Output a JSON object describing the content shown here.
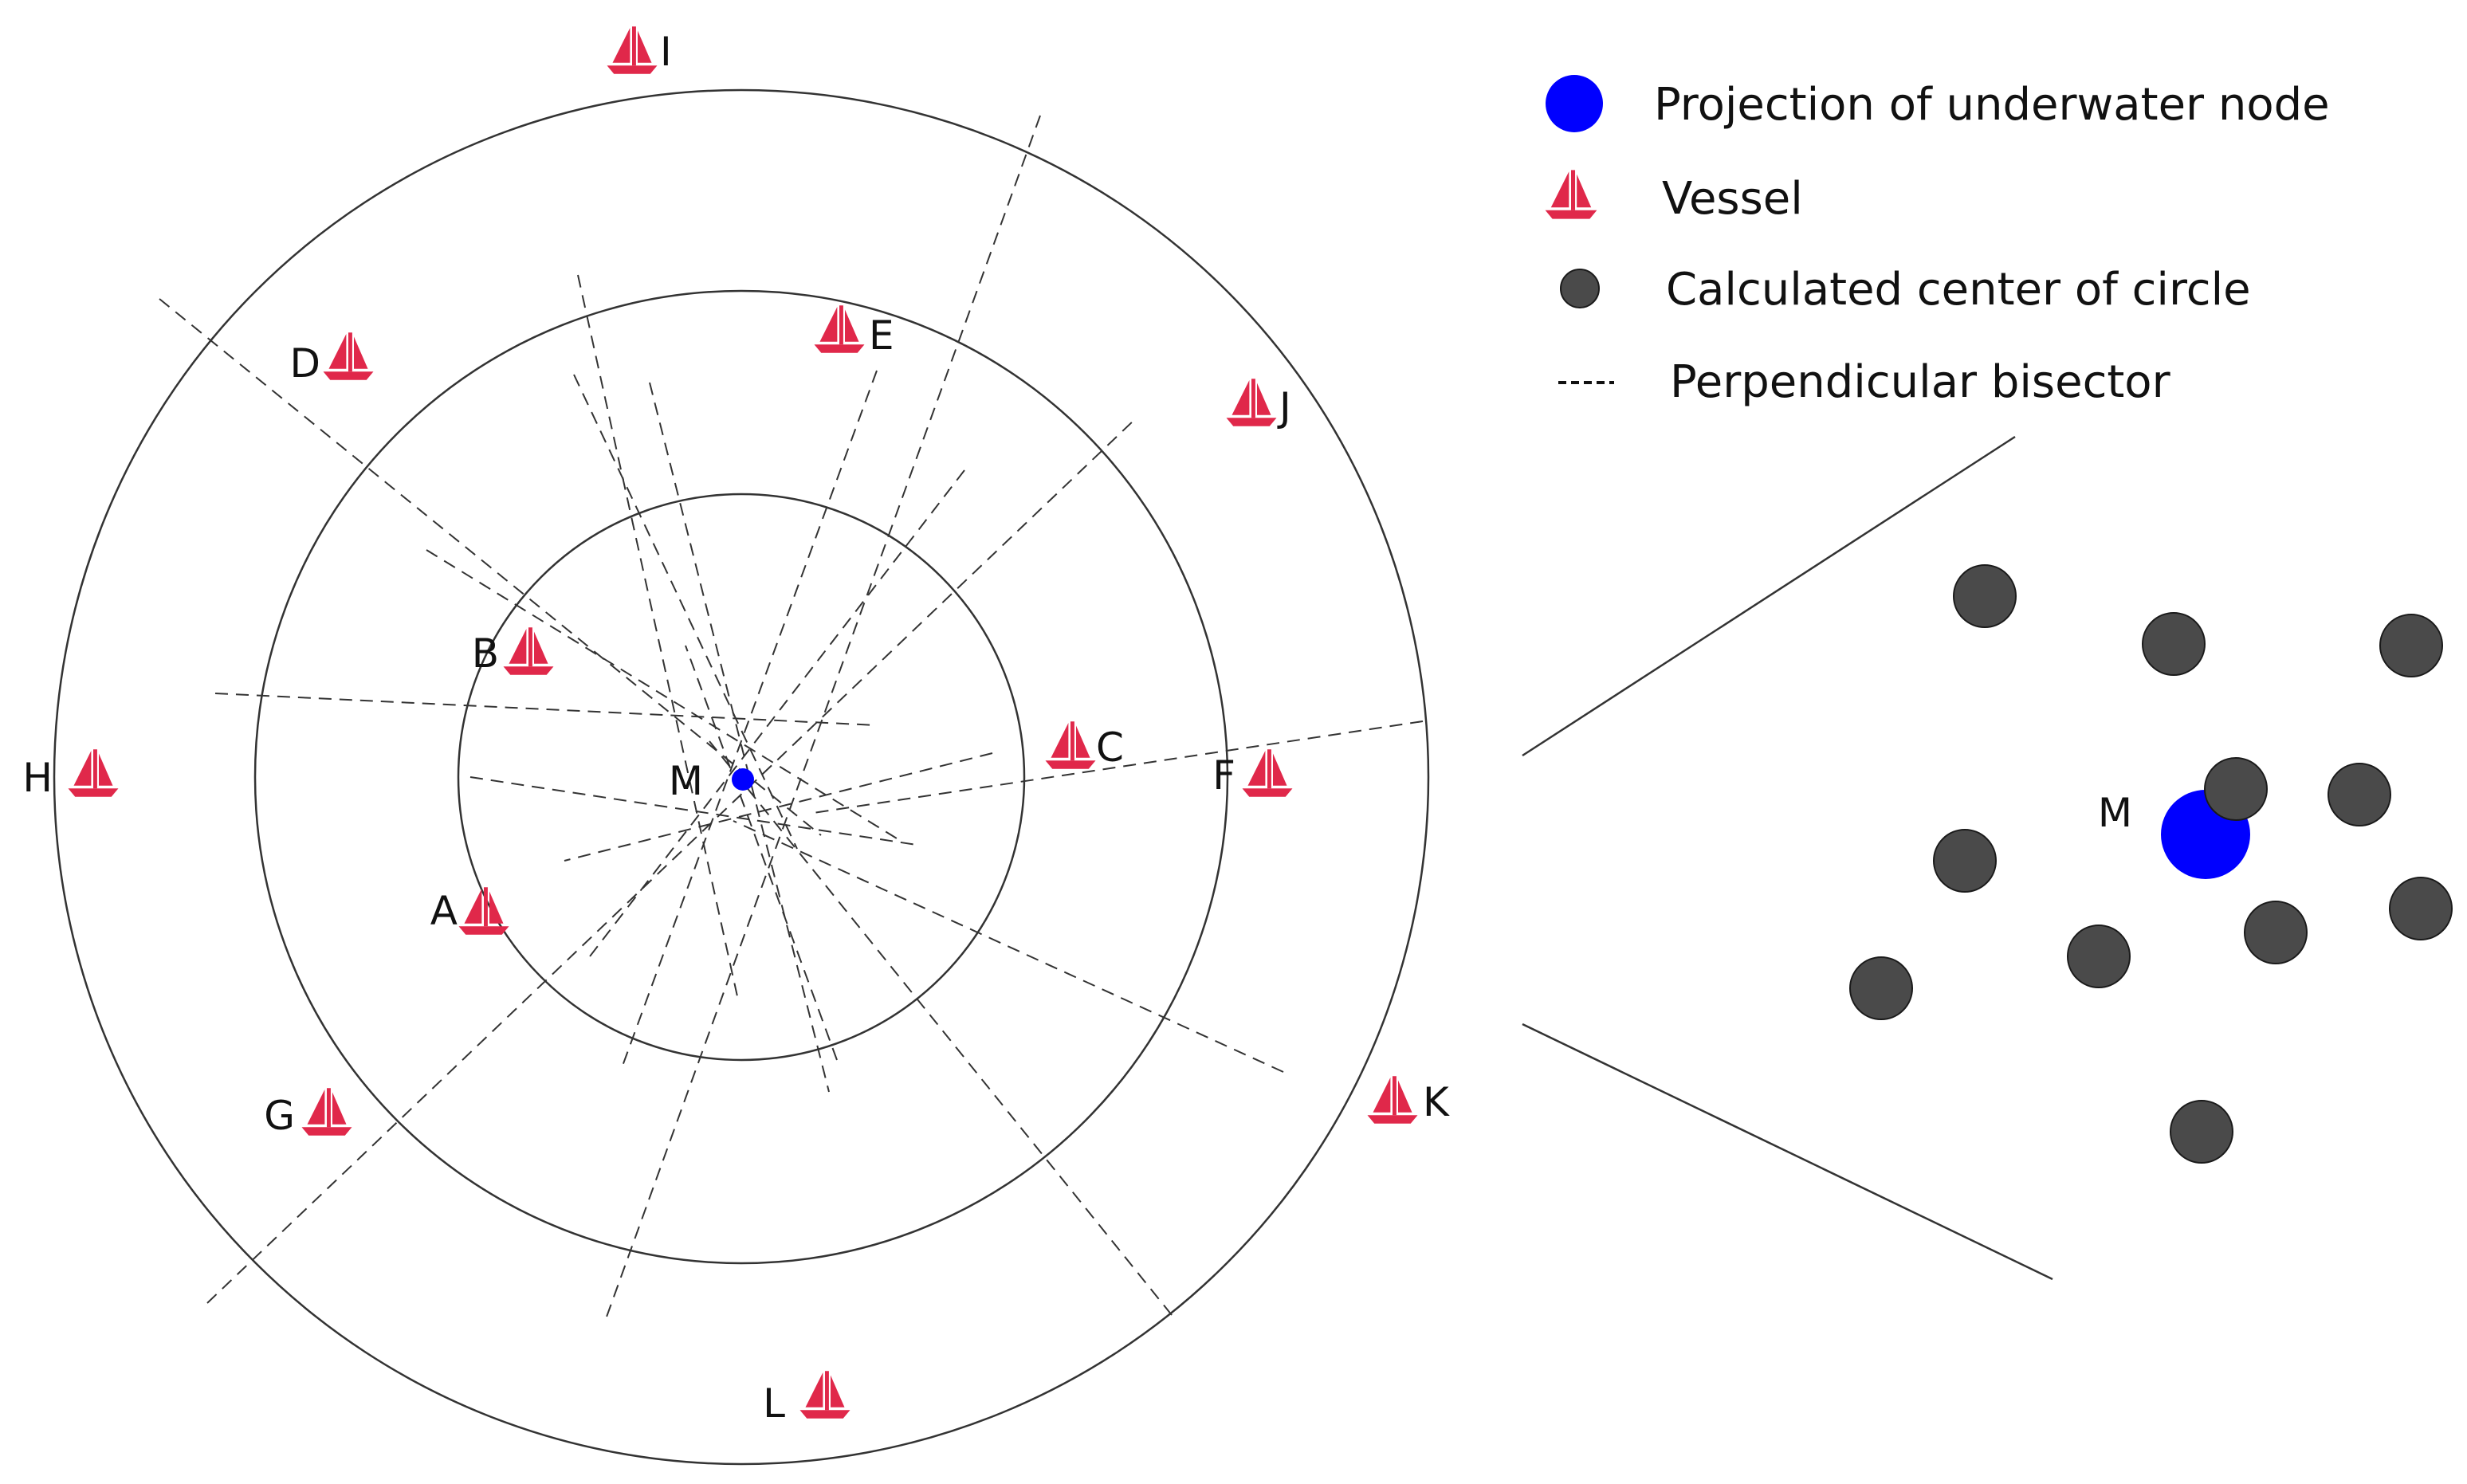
{
  "colors": {
    "vessel": "#E0284A",
    "node": "#0000FF",
    "center": "#4A4A4A",
    "line": "#333333"
  },
  "legend": {
    "node_label": "Projection of underwater node",
    "vessel_label": "Vessel",
    "center_label": "Calculated center of circle",
    "bisector_label": "Perpendicular bisector"
  },
  "diagram": {
    "node_label": "M",
    "vessels": [
      {
        "id": "A"
      },
      {
        "id": "B"
      },
      {
        "id": "C"
      },
      {
        "id": "D"
      },
      {
        "id": "E"
      },
      {
        "id": "F"
      },
      {
        "id": "G"
      },
      {
        "id": "H"
      },
      {
        "id": "I"
      },
      {
        "id": "J"
      },
      {
        "id": "K"
      },
      {
        "id": "L"
      }
    ]
  },
  "zoom": {
    "node_label": "M",
    "center_count": 11
  }
}
